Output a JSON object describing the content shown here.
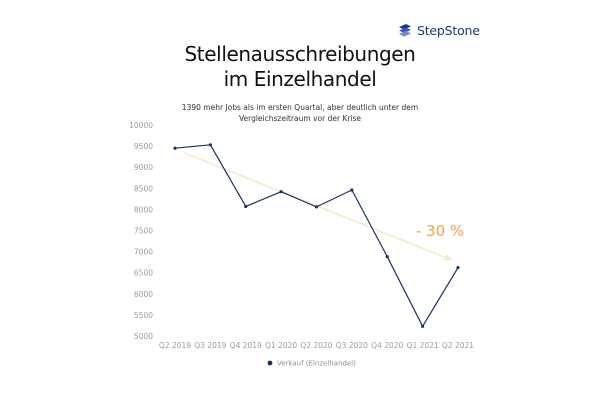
{
  "brand": {
    "name": "StepStone",
    "logo_icon": "stepstone-logo-icon",
    "color": "#1d3584"
  },
  "colors": {
    "series_line": "#1b2f6b",
    "trend_arrow": "#f5e9c8",
    "annotation": "#f0a04b"
  },
  "chart_data": {
    "type": "line",
    "title": "Stellenausschreibungen im Einzelhandel",
    "title_lines": [
      "Stellenausschreibungen",
      "im Einzelhandel"
    ],
    "subtitle": "1390 mehr Jobs als im ersten Quartal, aber deutlich unter dem Vergleichszeitraum vor der Krise",
    "subtitle_lines": [
      "1390 mehr Jobs als im ersten Quartal, aber deutlich unter dem",
      "Vergleichszeitraum vor der Krise"
    ],
    "categories": [
      "Q2 2019",
      "Q3 2019",
      "Q4 2019",
      "Q1 2020",
      "Q2 2020",
      "Q3 2020",
      "Q4 2020",
      "Q1 2021",
      "Q2 2021"
    ],
    "series": [
      {
        "name": "Verkauf (Einzelhandel)",
        "values": [
          9450,
          9530,
          8070,
          8420,
          8060,
          8460,
          6880,
          5230,
          6620
        ]
      }
    ],
    "ylim": [
      5000,
      10000
    ],
    "yticks": [
      5000,
      5500,
      6000,
      6500,
      7000,
      7500,
      8000,
      8500,
      9000,
      9500,
      10000
    ],
    "xlabel": "",
    "ylabel": "",
    "grid": false,
    "legend_position": "bottom-center",
    "trend_annotation": {
      "label": "- 30 %",
      "from_category": "Q2 2019",
      "to_category": "Q2 2021",
      "from_value": 9350,
      "to_value": 6800
    }
  }
}
